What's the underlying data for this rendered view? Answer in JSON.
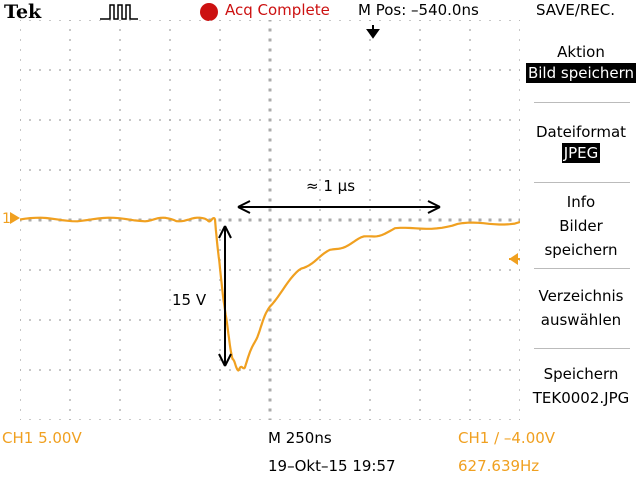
{
  "header": {
    "brand": "Tek",
    "acquisition_status": "Acq Complete",
    "position": "M Pos: –540.0ns",
    "menu_title": "SAVE/REC."
  },
  "menu": [
    {
      "label": "Aktion",
      "value": "Bild speichern"
    },
    {
      "label": "Dateiformat",
      "value": "JPEG"
    },
    {
      "label": "Info\nBilder\nspeichern",
      "value": ""
    },
    {
      "label": "Verzeichnis\nauswählen",
      "value": ""
    },
    {
      "label": "Speichern\nTEK0002.JPG",
      "value": ""
    }
  ],
  "footer": {
    "ch1_scale": "CH1  5.00V",
    "timebase": "M 250ns",
    "trigger": "CH1  ∕  –4.00V",
    "datetime": "19–Okt–15 19:57",
    "frequency": "627.639Hz"
  },
  "annotations": {
    "duration": "≈ 1 µs",
    "amplitude": "15 V"
  },
  "markers": {
    "channel": "1"
  },
  "colors": {
    "trace": "#f0a020",
    "acquisition": "#cc1111",
    "grid": "#aaaaaa"
  },
  "chart_data": {
    "type": "line",
    "x": [
      -2.0,
      -1.5,
      -1.0,
      -0.75,
      -0.5,
      -0.44,
      -0.4,
      -0.35,
      -0.3,
      -0.25,
      -0.2,
      -0.1,
      0.0,
      0.25,
      0.5,
      0.75,
      1.0,
      1.5,
      2.0
    ],
    "y": [
      0.05,
      0.05,
      0.05,
      0.05,
      0.05,
      0.0,
      -5.0,
      -10.0,
      -14.0,
      -15.0,
      -14.6,
      -11.5,
      -8.5,
      -4.8,
      -3.0,
      -1.8,
      -1.0,
      -0.5,
      -0.2
    ],
    "xlim": [
      -2.0,
      2.0
    ],
    "ylim": [
      -20,
      20
    ],
    "xlabel": "M 250ns",
    "ylabel": "CH1  5.00V",
    "grid": true,
    "trigger_level": -4.0
  }
}
